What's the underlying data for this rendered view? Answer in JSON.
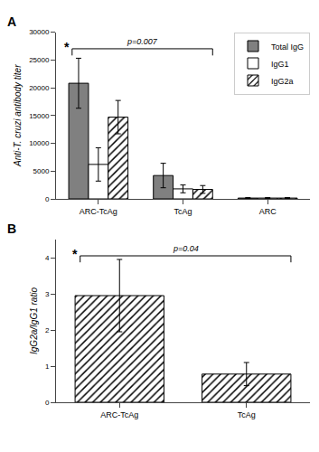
{
  "chart_data": [
    {
      "type": "bar",
      "title": "A",
      "categories": [
        "ARC-TcAg",
        "TcAg",
        "ARC"
      ],
      "series": [
        {
          "name": "Total IgG",
          "color": "#808080",
          "values": [
            20800,
            4200,
            150
          ],
          "errors": [
            4500,
            2200,
            80
          ]
        },
        {
          "name": "IgG1",
          "color": "#ffffff",
          "values": [
            6200,
            1800,
            150
          ],
          "errors": [
            3000,
            700,
            80
          ]
        },
        {
          "name": "IgG2a",
          "color": "#ffffff",
          "marker": "hatch",
          "values": [
            14700,
            1700,
            150
          ],
          "errors": [
            3000,
            700,
            80
          ]
        }
      ],
      "ylabel": "Anti-T. cruzi antibody titer",
      "ylim": [
        0,
        30000
      ],
      "yticks": [
        0,
        5000,
        10000,
        15000,
        20000,
        25000,
        30000
      ],
      "grid": false,
      "legend": "upper right",
      "annotations": [
        "*",
        "p=0.007"
      ]
    },
    {
      "type": "bar",
      "title": "B",
      "categories": [
        "ARC-TcAg",
        "TcAg"
      ],
      "values": [
        2.95,
        0.78
      ],
      "errors": [
        1.0,
        0.32
      ],
      "color": "#ffffff",
      "marker": "hatch",
      "ylabel": "IgG2a/IgG1 ratio",
      "ylim": [
        0,
        4.5
      ],
      "yticks": [
        0,
        1,
        2,
        3,
        4
      ],
      "grid": false,
      "annotations": [
        "*",
        "p=0.04"
      ]
    }
  ]
}
